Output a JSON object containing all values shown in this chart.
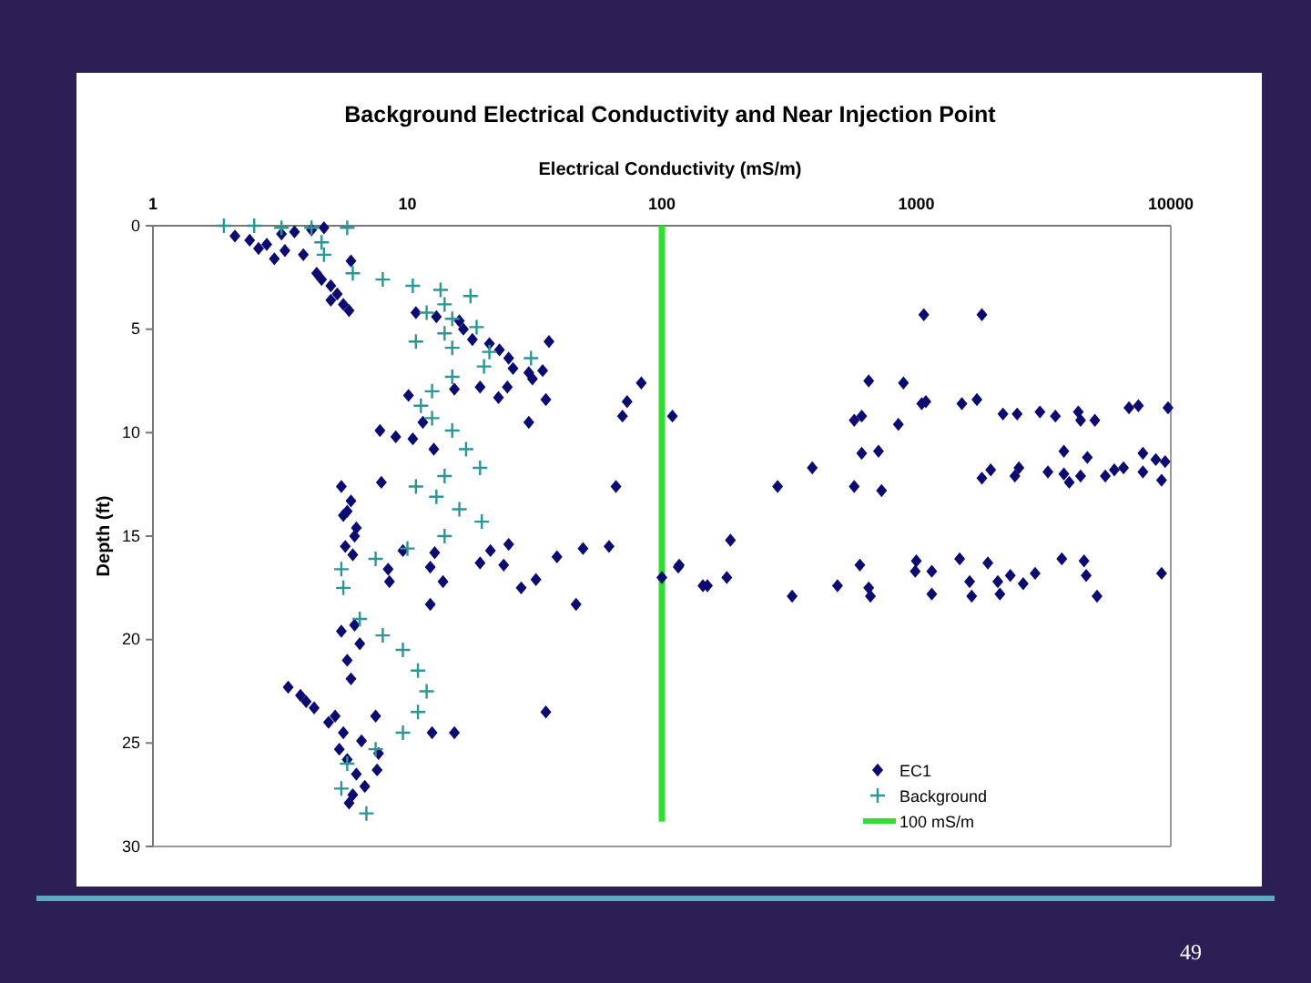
{
  "chart_data": {
    "type": "scatter",
    "title": "Background Electrical Conductivity and Near Injection Point",
    "xlabel": "Electrical Conductivity (mS/m)",
    "ylabel": "Depth (ft)",
    "log": "x",
    "xlim": [
      1,
      10000
    ],
    "xticks": [
      1,
      10,
      100,
      1000,
      10000
    ],
    "ylim": [
      30,
      0
    ],
    "yticks": [
      0,
      5,
      10,
      15,
      20,
      25,
      30
    ],
    "grid": false,
    "legend": "bottom right",
    "annotations": [
      "49"
    ],
    "series": [
      {
        "name": "EC1",
        "type": "scatter",
        "marker": "diamond",
        "color": "#0b0b70",
        "x": [
          2.1,
          2.4,
          2.8,
          3.2,
          3.6,
          4.2,
          3.3,
          3.9,
          2.6,
          3.0,
          4.7,
          4.4,
          4.6,
          5.0,
          5.3,
          5.6,
          5.9,
          5.0,
          6.0,
          10.8,
          13,
          16,
          16.6,
          18,
          21,
          23,
          25,
          26,
          30,
          34,
          31,
          36,
          10.1,
          15.3,
          19.3,
          22.8,
          24.7,
          35,
          30,
          83,
          73,
          70,
          110,
          7.8,
          9,
          10.5,
          12.7,
          11.5,
          7.9,
          66,
          5.5,
          6,
          5.6,
          6.3,
          5.8,
          6.2,
          5.7,
          6.1,
          8.4,
          8.5,
          12.3,
          12.3,
          13.8,
          19.3,
          21.2,
          23.9,
          25,
          28,
          32,
          38.7,
          46,
          49,
          62,
          100,
          117,
          151,
          12.8,
          9.6,
          6.2,
          6.5,
          5.8,
          6.0,
          5.5,
          3.4,
          3.8,
          4.3,
          4.9,
          4.0,
          5.2,
          5.6,
          6.6,
          7.7,
          5.4,
          7.5,
          12.5,
          15.3,
          35,
          5.8,
          6.3,
          6.8,
          7.6,
          6.1,
          5.9,
          1070,
          1810,
          650,
          890,
          570,
          610,
          850,
          1050,
          1090,
          1510,
          1730,
          2190,
          2490,
          3060,
          3520,
          4330,
          4420,
          5030,
          6850,
          7460,
          9750,
          3800,
          4700,
          1960,
          1810,
          2530,
          2440,
          3290,
          3800,
          3990,
          4420,
          5530,
          6000,
          6520,
          7770,
          7770,
          8730,
          9500,
          9200,
          710,
          610,
          570,
          730,
          390,
          285,
          186,
          116,
          145,
          180,
          325,
          490,
          600,
          650,
          660,
          1000,
          990,
          1150,
          1150,
          1480,
          1620,
          1650,
          1910,
          2090,
          2130,
          2340,
          2630,
          2930,
          3730,
          4560,
          4650,
          5130,
          9200
        ],
        "values": [
          0.5,
          0.7,
          0.9,
          0.4,
          0.3,
          0.2,
          1.2,
          1.4,
          1.1,
          1.6,
          0.1,
          2.3,
          2.6,
          2.9,
          3.3,
          3.8,
          4.1,
          3.6,
          1.7,
          4.2,
          4.4,
          4.6,
          5.0,
          5.5,
          5.7,
          6.0,
          6.4,
          6.9,
          7.1,
          7.0,
          7.4,
          5.6,
          8.2,
          7.9,
          7.8,
          8.3,
          7.8,
          8.4,
          9.5,
          7.6,
          8.5,
          9.2,
          9.2,
          9.9,
          10.2,
          10.3,
          10.8,
          9.5,
          12.4,
          12.6,
          12.6,
          13.3,
          14.0,
          14.6,
          13.8,
          15.0,
          15.5,
          15.9,
          16.6,
          17.2,
          16.5,
          18.3,
          17.2,
          16.3,
          15.7,
          16.4,
          15.4,
          17.5,
          17.1,
          16.0,
          18.3,
          15.6,
          15.5,
          17.0,
          16.4,
          17.4,
          15.8,
          15.7,
          19.3,
          20.2,
          21.0,
          21.9,
          19.6,
          22.3,
          22.7,
          23.3,
          24.0,
          23.0,
          23.7,
          24.5,
          24.9,
          25.5,
          25.3,
          23.7,
          24.5,
          24.5,
          23.5,
          25.8,
          26.5,
          27.1,
          26.3,
          27.5,
          27.9,
          4.3,
          4.3,
          7.5,
          7.6,
          9.4,
          9.2,
          9.6,
          8.6,
          8.5,
          8.6,
          8.4,
          9.1,
          9.1,
          9.0,
          9.2,
          9.0,
          9.4,
          9.4,
          8.8,
          8.7,
          8.8,
          10.9,
          11.2,
          11.8,
          12.2,
          11.7,
          12.1,
          11.9,
          12.0,
          12.4,
          12.1,
          12.1,
          11.8,
          11.7,
          11.9,
          11.0,
          11.3,
          11.4,
          12.3,
          10.9,
          11.0,
          12.6,
          12.8,
          11.7,
          12.6,
          15.2,
          16.5,
          17.4,
          17.0,
          17.9,
          17.4,
          16.4,
          17.5,
          17.9,
          16.2,
          16.7,
          16.7,
          17.8,
          16.1,
          17.2,
          17.9,
          16.3,
          17.2,
          17.8,
          16.9,
          17.3,
          16.8,
          16.1,
          16.2,
          16.9,
          17.9,
          16.8
        ]
      },
      {
        "name": "Background",
        "type": "scatter",
        "marker": "cross",
        "color": "#2a9696",
        "x": [
          1.9,
          2.5,
          3.2,
          4.2,
          5.8,
          4.6,
          4.7,
          6.1,
          8,
          10.5,
          13.5,
          17.7,
          14,
          11.9,
          15,
          18.7,
          14,
          10.8,
          15,
          21,
          30.6,
          20,
          15,
          12.5,
          11.3,
          12.5,
          15,
          17,
          19.3,
          14,
          10.8,
          13,
          16,
          19.6,
          14,
          10,
          7.5,
          5.5,
          5.6,
          6.5,
          8,
          9.6,
          11,
          11.9,
          11,
          9.6,
          7.5,
          5.8,
          5.5,
          6.9
        ],
        "values": [
          0.0,
          0.0,
          0.1,
          0.1,
          0.1,
          0.8,
          1.4,
          2.3,
          2.6,
          2.9,
          3.1,
          3.4,
          3.8,
          4.2,
          4.5,
          4.9,
          5.2,
          5.6,
          5.9,
          6.1,
          6.4,
          6.8,
          7.3,
          8.0,
          8.7,
          9.3,
          9.9,
          10.8,
          11.7,
          12.1,
          12.6,
          13.1,
          13.7,
          14.3,
          15.0,
          15.6,
          16.1,
          16.6,
          17.5,
          19.0,
          19.8,
          20.5,
          21.5,
          22.5,
          23.5,
          24.5,
          25.3,
          26.0,
          27.2,
          28.4
        ]
      },
      {
        "name": "100 mS/m",
        "type": "line",
        "marker": "none",
        "color": "#33dd33",
        "x": [
          100,
          100
        ],
        "values": [
          0,
          28.8
        ]
      }
    ]
  }
}
